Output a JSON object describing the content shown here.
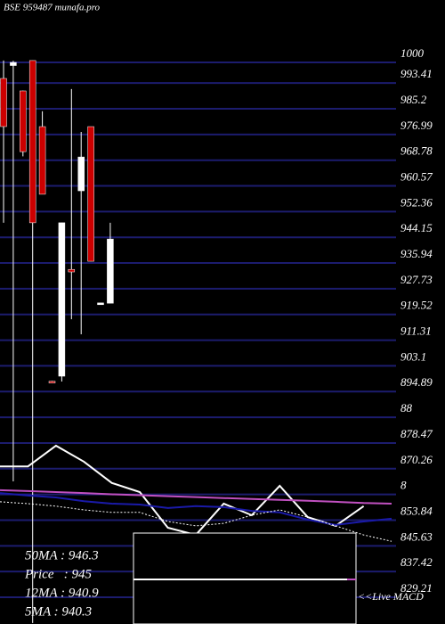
{
  "chart_data": {
    "type": "candlestick",
    "title": "BSE 959487 munafa.pro",
    "ylim": [
      820.67,
      1019.93
    ],
    "yticks": [
      1000,
      993.41,
      985.2,
      976.99,
      968.78,
      960.57,
      952.36,
      944.15,
      935.94,
      927.73,
      919.52,
      911.31,
      903.1,
      894.89,
      {
        "value": 886.68,
        "label": "88"
      },
      878.47,
      870.26,
      {
        "value": 862.05,
        "label": "8"
      },
      853.84,
      845.63,
      837.42,
      829.21
    ],
    "grid": true,
    "grid_color": "#1c1c6e",
    "up_color": "#ffffff",
    "down_color": "#cc0000",
    "open": [
      994.88,
      999.0,
      990.9,
      1000.6,
      979.5,
      898.2,
      899.8,
      933.9,
      959.0,
      979.5,
      923.1,
      923.1
    ],
    "high": [
      1000.6,
      1000.5,
      991.0,
      1000.6,
      984.4,
      898.3,
      948.8,
      991.5,
      977.8,
      979.5,
      923.3,
      948.8
    ],
    "low": [
      948.8,
      866.2,
      970.0,
      821.0,
      957.9,
      898.0,
      898.1,
      918.0,
      913.2,
      936.5,
      923.0,
      923.1
    ],
    "close": [
      979.51,
      1000.0,
      971.5,
      948.8,
      957.9,
      898.1,
      948.8,
      933.1,
      969.8,
      936.5,
      923.2,
      943.6
    ],
    "series": [
      {
        "color": "#ffffff",
        "style": "solid",
        "values": [
          871.0,
          871.0,
          877.6,
          872.5,
          865.7,
          862.8,
          851.4,
          849.1,
          859.1,
          855.4,
          864.8,
          854.8,
          852.0,
          858.3,
          null
        ]
      },
      {
        "color": "#1a1aa8",
        "style": "solid",
        "values": [
          862.5,
          861.7,
          861.1,
          859.9,
          859.1,
          858.8,
          857.7,
          858.3,
          858.0,
          856.8,
          856.3,
          854.0,
          852.3,
          853.4,
          854.3
        ]
      },
      {
        "color": "#c050c0",
        "style": "solid",
        "values": [
          863.4,
          863.1,
          862.8,
          862.5,
          862.1,
          861.8,
          861.5,
          861.2,
          860.9,
          860.6,
          860.3,
          860.0,
          859.7,
          859.3,
          859.1
        ]
      },
      {
        "color": "#ffffff",
        "style": "dotted",
        "values": [
          859.7,
          859.1,
          858.3,
          857.1,
          856.3,
          856.3,
          853.4,
          852.0,
          852.8,
          855.4,
          857.1,
          854.8,
          852.0,
          849.1,
          847.1
        ]
      }
    ],
    "stats": [
      "50MA : 946.3",
      "Price   : 945",
      "12MA : 940.9",
      "5MA : 940.3"
    ],
    "macd_label": "<<Live MACD"
  }
}
